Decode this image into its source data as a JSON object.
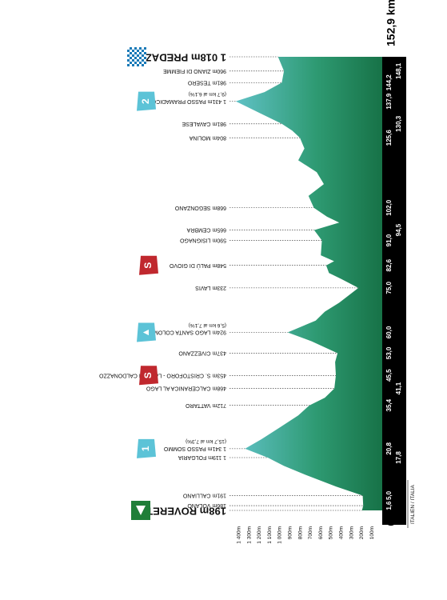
{
  "chart_data": {
    "type": "area",
    "title": "",
    "xlabel": "",
    "ylabel": "",
    "total_distance": "152,9 km",
    "start_km_label": "0",
    "country_label": "ITALIEN / ITALIA",
    "xlim": [
      0,
      152.9
    ],
    "ylim": [
      0,
      1400
    ],
    "elevation_ticks": [
      "1 400m",
      "1 300m",
      "1 200m",
      "1 100m",
      "1 000m",
      "900m",
      "800m",
      "700m",
      "600m",
      "500m",
      "400m",
      "300m",
      "200m",
      "100m"
    ],
    "elevation_tick_values": [
      1400,
      1300,
      1200,
      1100,
      1000,
      900,
      800,
      700,
      600,
      500,
      400,
      300,
      200,
      100
    ],
    "km_labels": [
      {
        "text": "1,6",
        "km": 1.6,
        "row": 0
      },
      {
        "text": "5,0",
        "km": 5.0,
        "row": 0
      },
      {
        "text": "17,8",
        "km": 17.8,
        "row": 1
      },
      {
        "text": "20,8",
        "km": 20.8,
        "row": 0
      },
      {
        "text": "35,4",
        "km": 35.4,
        "row": 0
      },
      {
        "text": "41,1",
        "km": 41.1,
        "row": 1
      },
      {
        "text": "45,5",
        "km": 45.5,
        "row": 0
      },
      {
        "text": "53,0",
        "km": 53.0,
        "row": 0
      },
      {
        "text": "60,0",
        "km": 60.0,
        "row": 0
      },
      {
        "text": "75,0",
        "km": 75.0,
        "row": 0
      },
      {
        "text": "82,6",
        "km": 82.6,
        "row": 0
      },
      {
        "text": "91,0",
        "km": 91.0,
        "row": 0
      },
      {
        "text": "94,5",
        "km": 94.5,
        "row": 1
      },
      {
        "text": "102,0",
        "km": 102.0,
        "row": 0
      },
      {
        "text": "125,6",
        "km": 125.6,
        "row": 0
      },
      {
        "text": "130,3",
        "km": 130.3,
        "row": 1
      },
      {
        "text": "137,9",
        "km": 137.9,
        "row": 0
      },
      {
        "text": "144,2",
        "km": 144.2,
        "row": 0
      },
      {
        "text": "148,1",
        "km": 148.1,
        "row": 1
      }
    ],
    "waypoints": [
      {
        "label": "198m ROVERETO",
        "km": 0,
        "elev": 198,
        "big": true
      },
      {
        "label": "186m VOLANO",
        "km": 1.6,
        "elev": 186
      },
      {
        "label": "191m CALLIANO",
        "km": 5.0,
        "elev": 191
      },
      {
        "label": "1 119m FOLGARIA",
        "km": 17.8,
        "elev": 1119
      },
      {
        "label": "1 341m PASSO SOMMO",
        "km": 20.8,
        "elev": 1341,
        "sub": "(15,7 km al 7,3%)"
      },
      {
        "label": "712m VATTARO",
        "km": 35.4,
        "elev": 712
      },
      {
        "label": "468m CALCERANICA AL LAGO",
        "km": 41.1,
        "elev": 468
      },
      {
        "label": "453m S. CRISTOFORO - LAGO DI CALDONAZZO",
        "km": 45.5,
        "elev": 453
      },
      {
        "label": "437m CIVEZZANO",
        "km": 53.0,
        "elev": 437
      },
      {
        "label": "924m LAGO SANTA COLOMBA",
        "km": 60.0,
        "elev": 924,
        "sub": "(5,6 km al 7,1%)"
      },
      {
        "label": "233m LAVIS",
        "km": 75.0,
        "elev": 233
      },
      {
        "label": "548m PALÙ DI GIOVO",
        "km": 82.6,
        "elev": 548
      },
      {
        "label": "590m LISIGNAGO",
        "km": 91.0,
        "elev": 590
      },
      {
        "label": "665m CEMBRA",
        "km": 94.5,
        "elev": 665
      },
      {
        "label": "668m SEGONZANO",
        "km": 102.0,
        "elev": 668
      },
      {
        "label": "804m MOLINA",
        "km": 125.6,
        "elev": 804
      },
      {
        "label": "981m CAVALESE",
        "km": 130.3,
        "elev": 981
      },
      {
        "label": "1 431m PASSO PRAMADICCIO",
        "km": 137.9,
        "elev": 1431,
        "sub": "(9,7 km al 6,1%)"
      },
      {
        "label": "981m TESERO",
        "km": 144.2,
        "elev": 981
      },
      {
        "label": "960m ZIANO DI FIEMME",
        "km": 148.1,
        "elev": 960
      },
      {
        "label": "1 018m PREDAZZO",
        "km": 152.9,
        "elev": 1018,
        "big": true
      }
    ],
    "profile": [
      {
        "km": 0,
        "elev": 198
      },
      {
        "km": 1.6,
        "elev": 186
      },
      {
        "km": 5.0,
        "elev": 191
      },
      {
        "km": 8,
        "elev": 450
      },
      {
        "km": 12,
        "elev": 750
      },
      {
        "km": 15,
        "elev": 960
      },
      {
        "km": 17.8,
        "elev": 1119
      },
      {
        "km": 20.8,
        "elev": 1341
      },
      {
        "km": 24,
        "elev": 1180
      },
      {
        "km": 28,
        "elev": 1000
      },
      {
        "km": 32,
        "elev": 820
      },
      {
        "km": 35.4,
        "elev": 712
      },
      {
        "km": 38,
        "elev": 560
      },
      {
        "km": 41.1,
        "elev": 468
      },
      {
        "km": 45.5,
        "elev": 453
      },
      {
        "km": 50,
        "elev": 460
      },
      {
        "km": 53.0,
        "elev": 437
      },
      {
        "km": 57,
        "elev": 690
      },
      {
        "km": 60.0,
        "elev": 924
      },
      {
        "km": 64,
        "elev": 650
      },
      {
        "km": 67,
        "elev": 560
      },
      {
        "km": 70,
        "elev": 420
      },
      {
        "km": 75.0,
        "elev": 233
      },
      {
        "km": 78,
        "elev": 400
      },
      {
        "km": 80,
        "elev": 520
      },
      {
        "km": 82.6,
        "elev": 548
      },
      {
        "km": 84,
        "elev": 470
      },
      {
        "km": 86,
        "elev": 600
      },
      {
        "km": 91.0,
        "elev": 590
      },
      {
        "km": 94.5,
        "elev": 665
      },
      {
        "km": 97,
        "elev": 420
      },
      {
        "km": 99,
        "elev": 540
      },
      {
        "km": 102.0,
        "elev": 668
      },
      {
        "km": 106,
        "elev": 720
      },
      {
        "km": 110,
        "elev": 570
      },
      {
        "km": 114,
        "elev": 640
      },
      {
        "km": 118,
        "elev": 820
      },
      {
        "km": 122,
        "elev": 760
      },
      {
        "km": 125.6,
        "elev": 804
      },
      {
        "km": 128,
        "elev": 880
      },
      {
        "km": 130.3,
        "elev": 981
      },
      {
        "km": 134,
        "elev": 1200
      },
      {
        "km": 137.9,
        "elev": 1431
      },
      {
        "km": 141,
        "elev": 1150
      },
      {
        "km": 144.2,
        "elev": 981
      },
      {
        "km": 148.1,
        "elev": 960
      },
      {
        "km": 152.9,
        "elev": 1018
      }
    ],
    "climbs": [
      {
        "km": 20.8,
        "icon": "1",
        "kind": "climb"
      },
      {
        "km": 45.5,
        "icon": "S",
        "kind": "sprint"
      },
      {
        "km": 60.0,
        "icon": "▲",
        "kind": "climb"
      },
      {
        "km": 82.6,
        "icon": "S",
        "kind": "sprint"
      },
      {
        "km": 137.9,
        "icon": "2",
        "kind": "climb"
      }
    ],
    "colors": {
      "fill_top": "#2e9a6e",
      "fill_bottom": "#1b7a4c",
      "base_bar": "#000000",
      "climb_icon": "#5cc3d7",
      "sprint_icon": "#c0282e",
      "start_icon": "#1f7e38",
      "finish_icon": "#1779b7"
    }
  }
}
